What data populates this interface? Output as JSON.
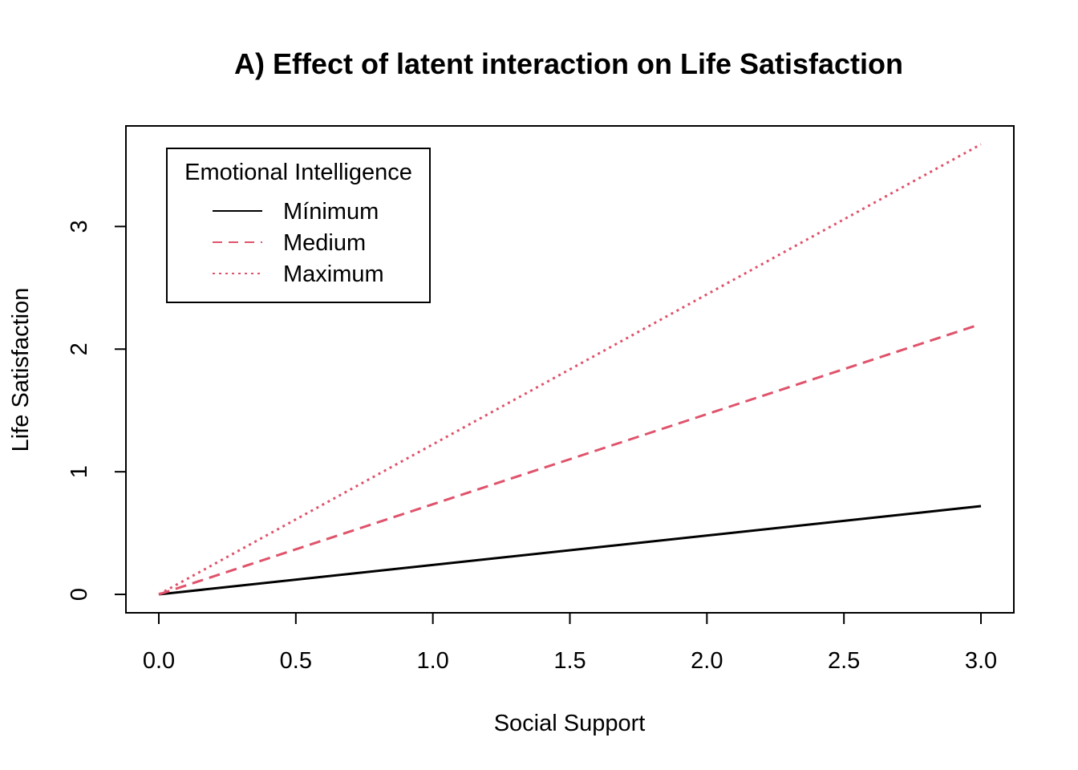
{
  "chart_data": {
    "type": "line",
    "title": "A) Effect of latent interaction on Life Satisfaction",
    "xlabel": "Social Support",
    "ylabel": "Life Satisfaction",
    "x_ticks": [
      "0.0",
      "0.5",
      "1.0",
      "1.5",
      "2.0",
      "2.5",
      "3.0"
    ],
    "y_ticks": [
      "0",
      "1",
      "2",
      "3"
    ],
    "xlim": [
      -0.12,
      3.12
    ],
    "ylim": [
      -0.15,
      3.82
    ],
    "grid": false,
    "legend": {
      "title": "Emotional Intelligence",
      "placement": "top-left"
    },
    "series": [
      {
        "name": "Mínimum",
        "color": "#000000",
        "dash": "solid",
        "x": [
          0,
          3.0
        ],
        "y": [
          0,
          0.72
        ]
      },
      {
        "name": "Medium",
        "color": "#DF536B",
        "dash": "dashed",
        "x": [
          0,
          2.98
        ],
        "y": [
          0,
          2.19
        ]
      },
      {
        "name": "Maximum",
        "color": "#DF536B",
        "dash": "dotted",
        "x": [
          0,
          3.0
        ],
        "y": [
          0,
          3.67
        ]
      }
    ]
  }
}
